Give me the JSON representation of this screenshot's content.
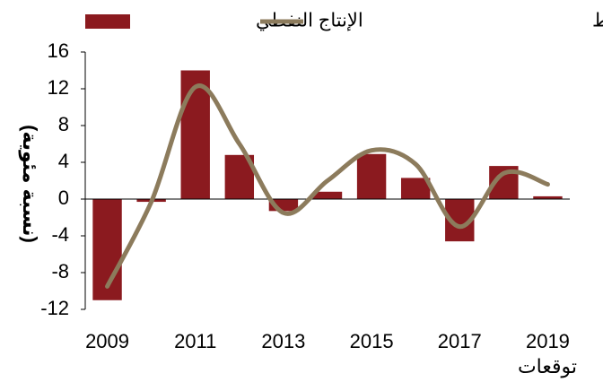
{
  "chart_data": {
    "type": "bar",
    "categories": [
      "2009",
      null,
      "2011",
      null,
      "2013",
      null,
      "2015",
      null,
      "2017",
      null,
      "2019"
    ],
    "series": [
      {
        "name": "الإنتاج النفطي",
        "type": "bar",
        "color": "#8b1a1f",
        "values": [
          -11,
          -0.3,
          14,
          4.8,
          -1.3,
          0.8,
          4.9,
          2.3,
          -4.6,
          3.6,
          0.3
        ]
      },
      {
        "name": "الناتج الإجمالي الفعلي لقطاع النفط",
        "type": "line",
        "smooth": true,
        "color": "#8c7b5c",
        "values": [
          -9.5,
          -0.3,
          12.2,
          6,
          -1.5,
          2,
          5.3,
          3.8,
          -3,
          2.8,
          1.6
        ]
      }
    ],
    "y_label": "(نسبة مئوية)",
    "annotation": "توقعات",
    "ylim": [
      -12,
      16
    ],
    "yticks": [
      -12,
      -8,
      -4,
      0,
      4,
      8,
      12,
      16
    ]
  }
}
